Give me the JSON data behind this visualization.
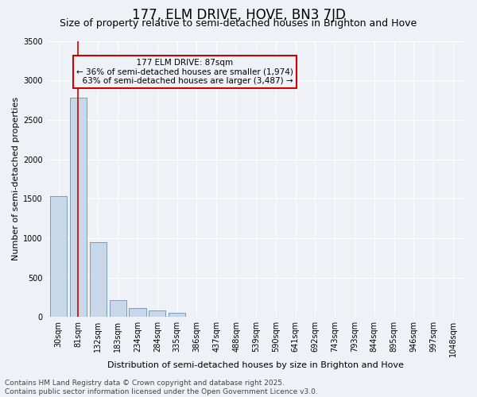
{
  "title": "177, ELM DRIVE, HOVE, BN3 7JD",
  "subtitle": "Size of property relative to semi-detached houses in Brighton and Hove",
  "xlabel": "Distribution of semi-detached houses by size in Brighton and Hove",
  "ylabel": "Number of semi-detached properties",
  "bin_labels": [
    "30sqm",
    "81sqm",
    "132sqm",
    "183sqm",
    "234sqm",
    "284sqm",
    "335sqm",
    "386sqm",
    "437sqm",
    "488sqm",
    "539sqm",
    "590sqm",
    "641sqm",
    "692sqm",
    "743sqm",
    "793sqm",
    "844sqm",
    "895sqm",
    "946sqm",
    "997sqm",
    "1048sqm"
  ],
  "bar_values": [
    1530,
    2780,
    950,
    215,
    110,
    85,
    50,
    8,
    2,
    1,
    1,
    0,
    0,
    0,
    0,
    0,
    0,
    0,
    0,
    0,
    0
  ],
  "bar_color": "#c8d8e8",
  "bar_edge_color": "#7090b0",
  "ylim": [
    0,
    3500
  ],
  "yticks": [
    0,
    500,
    1000,
    1500,
    2000,
    2500,
    3000,
    3500
  ],
  "property_bin_index": 1,
  "property_label": "177 ELM DRIVE: 87sqm",
  "pct_smaller": 36,
  "pct_larger": 63,
  "n_smaller": 1974,
  "n_larger": 3487,
  "annotation_line_color": "#cc0000",
  "annotation_box_color": "#cc0000",
  "annotation_text_color": "#000000",
  "footer_line1": "Contains HM Land Registry data © Crown copyright and database right 2025.",
  "footer_line2": "Contains public sector information licensed under the Open Government Licence v3.0.",
  "background_color": "#eef2f7",
  "grid_color": "#ffffff",
  "title_fontsize": 12,
  "subtitle_fontsize": 9,
  "axis_label_fontsize": 8,
  "tick_fontsize": 7,
  "annotation_fontsize": 7.5,
  "footer_fontsize": 6.5
}
